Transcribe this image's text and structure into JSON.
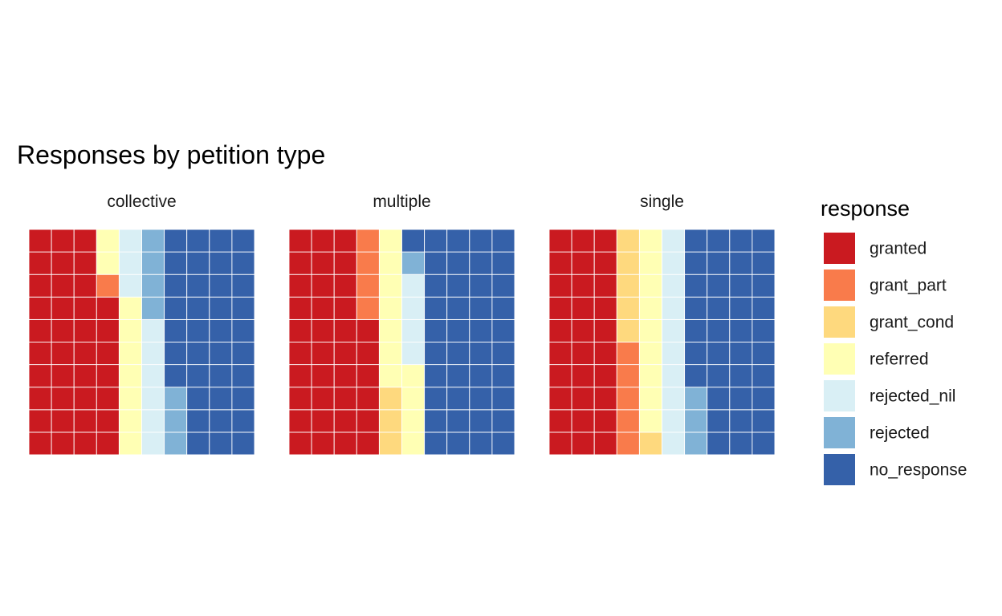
{
  "chart_data": {
    "type": "waffle",
    "title": "Responses by petition type",
    "legend": {
      "title": "response",
      "position": "right"
    },
    "grid": "10x10 squares, filled column by column",
    "categories": [
      "granted",
      "grant_part",
      "grant_cond",
      "referred",
      "rejected_nil",
      "rejected",
      "no_response"
    ],
    "colors": {
      "granted": "#ca1a20",
      "grant_part": "#f97b4b",
      "grant_cond": "#fed97e",
      "referred": "#ffffb4",
      "rejected_nil": "#d9eff5",
      "rejected": "#80b2d6",
      "no_response": "#3561a9"
    },
    "facets": [
      {
        "name": "collective",
        "values": {
          "granted": 37,
          "grant_part": 1,
          "grant_cond": 0,
          "referred": 9,
          "rejected_nil": 9,
          "rejected": 7,
          "no_response": 37
        }
      },
      {
        "name": "multiple",
        "values": {
          "granted": 36,
          "grant_part": 4,
          "grant_cond": 3,
          "referred": 11,
          "rejected_nil": 4,
          "rejected": 1,
          "no_response": 41
        }
      },
      {
        "name": "single",
        "values": {
          "granted": 30,
          "grant_part": 5,
          "grant_cond": 6,
          "referred": 9,
          "rejected_nil": 10,
          "rejected": 3,
          "no_response": 37
        }
      }
    ]
  }
}
